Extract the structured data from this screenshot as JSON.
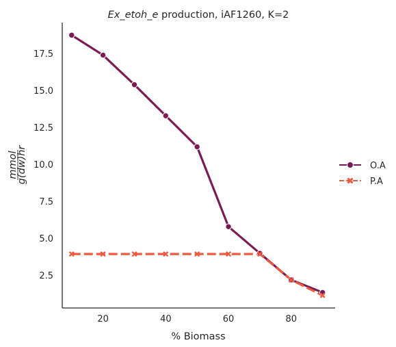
{
  "chart_data": {
    "type": "line",
    "title_italic": "Ex_etoh_e",
    "title_rest": " production, iAF1260, K=2",
    "xlabel": "% Biomass",
    "ylabel_numerator": "mmol",
    "ylabel_denominator": "g(dw)hr",
    "xlim": [
      7,
      94
    ],
    "ylim": [
      0.3,
      19.6
    ],
    "xticks": [
      20,
      40,
      60,
      80
    ],
    "yticks": [
      2.5,
      5.0,
      7.5,
      10.0,
      12.5,
      15.0,
      17.5
    ],
    "ytick_labels": [
      "2.5",
      "5.0",
      "7.5",
      "10.0",
      "12.5",
      "15.0",
      "17.5"
    ],
    "x": [
      10,
      20,
      30,
      40,
      50,
      60,
      70,
      80,
      90
    ],
    "series": [
      {
        "name": "O.A",
        "values": [
          18.75,
          17.4,
          15.4,
          13.3,
          11.2,
          5.8,
          4.0,
          2.2,
          1.35
        ],
        "color": "#7a1b55",
        "marker": "circle",
        "dash": "solid"
      },
      {
        "name": "P.A",
        "values": [
          3.95,
          3.95,
          3.95,
          3.95,
          3.95,
          3.95,
          3.95,
          2.2,
          1.15
        ],
        "color": "#ee5a3f",
        "marker": "x",
        "dash": "dashed"
      }
    ],
    "grid": false,
    "legend_position": "right"
  }
}
